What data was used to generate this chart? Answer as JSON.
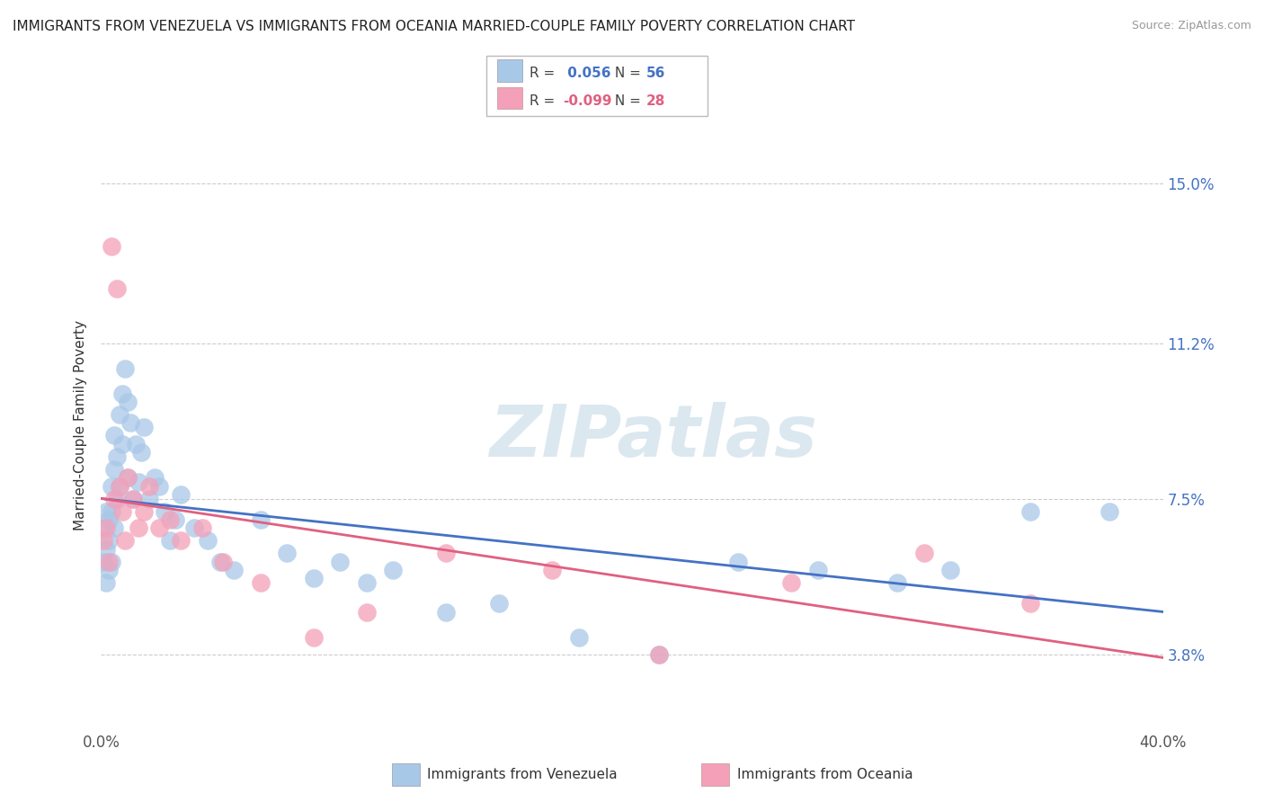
{
  "title": "IMMIGRANTS FROM VENEZUELA VS IMMIGRANTS FROM OCEANIA MARRIED-COUPLE FAMILY POVERTY CORRELATION CHART",
  "source": "Source: ZipAtlas.com",
  "ylabel": "Married-Couple Family Poverty",
  "xlim": [
    0.0,
    0.4
  ],
  "ylim": [
    0.02,
    0.165
  ],
  "xticks": [
    0.0,
    0.1,
    0.2,
    0.3,
    0.4
  ],
  "xticklabels": [
    "0.0%",
    "",
    "",
    "",
    "40.0%"
  ],
  "ytick_positions": [
    0.038,
    0.075,
    0.112,
    0.15
  ],
  "ytick_labels": [
    "3.8%",
    "7.5%",
    "11.2%",
    "15.0%"
  ],
  "series1_name": "Immigrants from Venezuela",
  "series1_color": "#a8c8e8",
  "series1_R": 0.056,
  "series1_N": 56,
  "series1_x": [
    0.001,
    0.001,
    0.002,
    0.002,
    0.002,
    0.003,
    0.003,
    0.003,
    0.004,
    0.004,
    0.004,
    0.005,
    0.005,
    0.005,
    0.006,
    0.006,
    0.007,
    0.007,
    0.008,
    0.008,
    0.009,
    0.01,
    0.01,
    0.011,
    0.012,
    0.013,
    0.014,
    0.015,
    0.016,
    0.018,
    0.02,
    0.022,
    0.024,
    0.026,
    0.028,
    0.03,
    0.035,
    0.04,
    0.045,
    0.05,
    0.06,
    0.07,
    0.08,
    0.09,
    0.1,
    0.11,
    0.13,
    0.15,
    0.18,
    0.21,
    0.24,
    0.27,
    0.3,
    0.32,
    0.35,
    0.38
  ],
  "series1_y": [
    0.068,
    0.06,
    0.072,
    0.063,
    0.055,
    0.07,
    0.058,
    0.065,
    0.078,
    0.06,
    0.072,
    0.082,
    0.068,
    0.09,
    0.075,
    0.085,
    0.095,
    0.078,
    0.1,
    0.088,
    0.106,
    0.098,
    0.08,
    0.093,
    0.075,
    0.088,
    0.079,
    0.086,
    0.092,
    0.075,
    0.08,
    0.078,
    0.072,
    0.065,
    0.07,
    0.076,
    0.068,
    0.065,
    0.06,
    0.058,
    0.07,
    0.062,
    0.056,
    0.06,
    0.055,
    0.058,
    0.048,
    0.05,
    0.042,
    0.038,
    0.06,
    0.058,
    0.055,
    0.058,
    0.072,
    0.072
  ],
  "series2_name": "Immigrants from Oceania",
  "series2_color": "#f4a0b8",
  "series2_R": -0.099,
  "series2_N": 28,
  "series2_x": [
    0.001,
    0.002,
    0.003,
    0.004,
    0.005,
    0.006,
    0.007,
    0.008,
    0.009,
    0.01,
    0.012,
    0.014,
    0.016,
    0.018,
    0.022,
    0.026,
    0.03,
    0.038,
    0.046,
    0.06,
    0.08,
    0.1,
    0.13,
    0.17,
    0.21,
    0.26,
    0.31,
    0.35
  ],
  "series2_y": [
    0.065,
    0.068,
    0.06,
    0.135,
    0.075,
    0.125,
    0.078,
    0.072,
    0.065,
    0.08,
    0.075,
    0.068,
    0.072,
    0.078,
    0.068,
    0.07,
    0.065,
    0.068,
    0.06,
    0.055,
    0.042,
    0.048,
    0.062,
    0.058,
    0.038,
    0.055,
    0.062,
    0.05
  ],
  "line1_color": "#4472c4",
  "line2_color": "#e06080",
  "background_color": "#ffffff",
  "grid_color": "#cccccc",
  "watermark_text": "ZIPatlas",
  "watermark_color": "#dce8f0",
  "title_fontsize": 11,
  "axis_label_color": "#4472c4",
  "legend_box_color1": "#a8c8e8",
  "legend_box_color2": "#f4a0b8",
  "legend_R1_color": "#4472c4",
  "legend_N1_color": "#4472c4",
  "legend_R2_color": "#e06080",
  "legend_N2_color": "#e06080"
}
